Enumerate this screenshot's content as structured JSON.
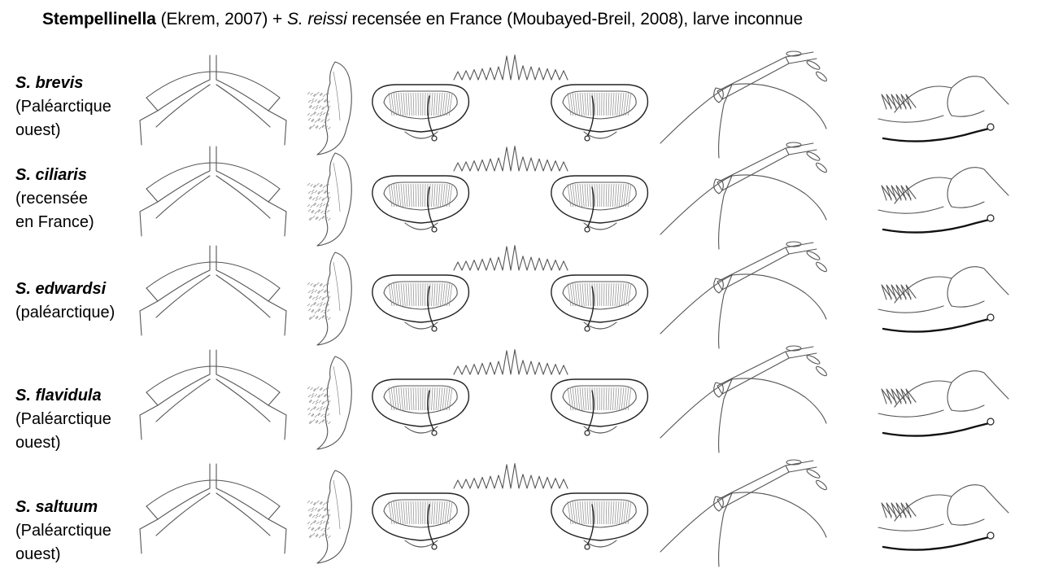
{
  "title": {
    "genus": "Stempellinella",
    "part1": " (Ekrem, 2007) + ",
    "species": "S. reissi",
    "part2": " recensée en France (Moubayed-Breil, 2008), larve inconnue"
  },
  "rows": [
    {
      "species": "S. brevis",
      "lines": [
        "(Paléarctique",
        "ouest)"
      ]
    },
    {
      "species": "S. ciliaris",
      "lines": [
        "(recensée",
        "en France)"
      ]
    },
    {
      "species": "S. edwardsi",
      "lines": [
        "(paléarctique)"
      ]
    },
    {
      "species": "S. flavidula",
      "lines": [
        "(Paléarctique",
        "ouest)"
      ]
    },
    {
      "species": "S. saltuum",
      "lines": [
        "(Paléarctique",
        "ouest)"
      ]
    }
  ]
}
